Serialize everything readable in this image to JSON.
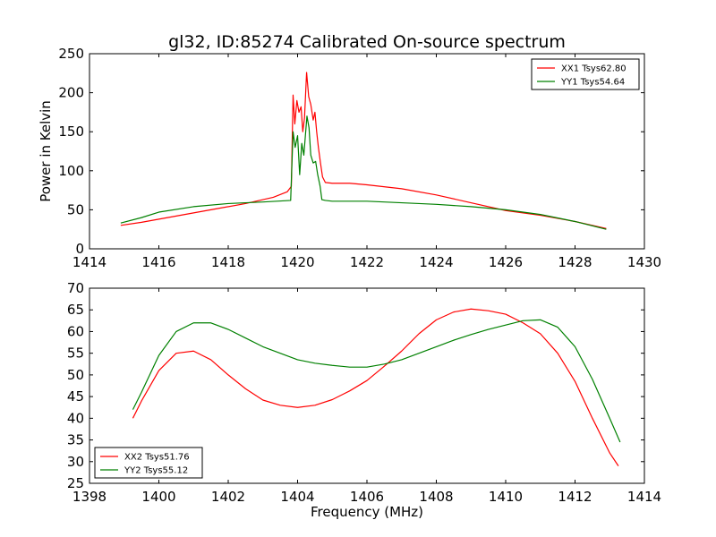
{
  "figure": {
    "title": "gl32, ID:85274 Calibrated On-source spectrum"
  },
  "chart_data": [
    {
      "type": "line",
      "title": "gl32, ID:85274 Calibrated On-source spectrum",
      "xlabel": "",
      "ylabel": "Power in Kelvin",
      "xlim": [
        1414,
        1430
      ],
      "ylim": [
        0,
        250
      ],
      "xticks": [
        1414,
        1416,
        1418,
        1420,
        1422,
        1424,
        1426,
        1428,
        1430
      ],
      "yticks": [
        0,
        50,
        100,
        150,
        200,
        250
      ],
      "grid": false,
      "legend": "top-right",
      "series": [
        {
          "name": "XX1 Tsys62.80",
          "color": "#ff0000",
          "points": [
            [
              1414.9,
              30
            ],
            [
              1415.5,
              34
            ],
            [
              1416.5,
              42
            ],
            [
              1417.5,
              50
            ],
            [
              1418.5,
              58
            ],
            [
              1419.3,
              66
            ],
            [
              1419.7,
              73
            ],
            [
              1419.82,
              80
            ],
            [
              1419.87,
              197
            ],
            [
              1419.92,
              160
            ],
            [
              1419.98,
              190
            ],
            [
              1420.04,
              175
            ],
            [
              1420.1,
              182
            ],
            [
              1420.15,
              150
            ],
            [
              1420.2,
              168
            ],
            [
              1420.26,
              226
            ],
            [
              1420.32,
              195
            ],
            [
              1420.38,
              185
            ],
            [
              1420.45,
              165
            ],
            [
              1420.5,
              175
            ],
            [
              1420.55,
              150
            ],
            [
              1420.6,
              130
            ],
            [
              1420.66,
              110
            ],
            [
              1420.72,
              92
            ],
            [
              1420.8,
              85
            ],
            [
              1421,
              84
            ],
            [
              1421.5,
              84
            ],
            [
              1422,
              82
            ],
            [
              1423,
              77
            ],
            [
              1424,
              69
            ],
            [
              1425,
              59
            ],
            [
              1426,
              49
            ],
            [
              1427,
              43
            ],
            [
              1428,
              35
            ],
            [
              1428.9,
              26
            ]
          ]
        },
        {
          "name": "YY1 Tsys54.64",
          "color": "#008000",
          "points": [
            [
              1414.9,
              33
            ],
            [
              1415.5,
              40
            ],
            [
              1416,
              47
            ],
            [
              1417,
              54
            ],
            [
              1418,
              58
            ],
            [
              1419,
              60
            ],
            [
              1419.8,
              62
            ],
            [
              1419.87,
              150
            ],
            [
              1419.93,
              130
            ],
            [
              1420,
              145
            ],
            [
              1420.06,
              95
            ],
            [
              1420.12,
              135
            ],
            [
              1420.18,
              120
            ],
            [
              1420.27,
              170
            ],
            [
              1420.33,
              155
            ],
            [
              1420.38,
              120
            ],
            [
              1420.45,
              110
            ],
            [
              1420.52,
              112
            ],
            [
              1420.58,
              95
            ],
            [
              1420.65,
              80
            ],
            [
              1420.7,
              63
            ],
            [
              1420.8,
              62
            ],
            [
              1421,
              61
            ],
            [
              1422,
              61
            ],
            [
              1423,
              59
            ],
            [
              1424,
              57
            ],
            [
              1425,
              54
            ],
            [
              1426,
              50
            ],
            [
              1427,
              44
            ],
            [
              1428,
              35
            ],
            [
              1428.9,
              25
            ]
          ]
        }
      ]
    },
    {
      "type": "line",
      "title": "",
      "xlabel": "Frequency (MHz)",
      "ylabel": "",
      "xlim": [
        1398,
        1414
      ],
      "ylim": [
        25,
        70
      ],
      "xticks": [
        1398,
        1400,
        1402,
        1404,
        1406,
        1408,
        1410,
        1412,
        1414
      ],
      "yticks": [
        25,
        30,
        35,
        40,
        45,
        50,
        55,
        60,
        65,
        70
      ],
      "grid": false,
      "legend": "bottom-left",
      "series": [
        {
          "name": "XX2 Tsys51.76",
          "color": "#ff0000",
          "points": [
            [
              1399.25,
              40
            ],
            [
              1399.5,
              44
            ],
            [
              1400,
              51
            ],
            [
              1400.5,
              55
            ],
            [
              1401,
              55.5
            ],
            [
              1401.5,
              53.5
            ],
            [
              1402,
              50
            ],
            [
              1402.5,
              46.8
            ],
            [
              1403,
              44.2
            ],
            [
              1403.5,
              43
            ],
            [
              1404,
              42.5
            ],
            [
              1404.5,
              43
            ],
            [
              1405,
              44.3
            ],
            [
              1405.5,
              46.3
            ],
            [
              1406,
              48.7
            ],
            [
              1406.5,
              52
            ],
            [
              1407,
              55.5
            ],
            [
              1407.5,
              59.5
            ],
            [
              1408,
              62.7
            ],
            [
              1408.5,
              64.5
            ],
            [
              1409,
              65.2
            ],
            [
              1409.5,
              64.8
            ],
            [
              1410,
              64
            ],
            [
              1410.5,
              62
            ],
            [
              1411,
              59.5
            ],
            [
              1411.5,
              55
            ],
            [
              1412,
              48.5
            ],
            [
              1412.5,
              40
            ],
            [
              1413,
              32
            ],
            [
              1413.25,
              29
            ]
          ]
        },
        {
          "name": "YY2 Tsys55.12",
          "color": "#008000",
          "points": [
            [
              1399.25,
              42
            ],
            [
              1399.5,
              46
            ],
            [
              1400,
              54.5
            ],
            [
              1400.5,
              60
            ],
            [
              1401,
              62
            ],
            [
              1401.5,
              62
            ],
            [
              1402,
              60.5
            ],
            [
              1402.5,
              58.5
            ],
            [
              1403,
              56.5
            ],
            [
              1403.5,
              55
            ],
            [
              1404,
              53.5
            ],
            [
              1404.5,
              52.7
            ],
            [
              1405,
              52.2
            ],
            [
              1405.5,
              51.8
            ],
            [
              1406,
              51.8
            ],
            [
              1406.5,
              52.5
            ],
            [
              1407,
              53.5
            ],
            [
              1407.5,
              55
            ],
            [
              1408,
              56.5
            ],
            [
              1408.5,
              58
            ],
            [
              1409,
              59.3
            ],
            [
              1409.5,
              60.5
            ],
            [
              1410,
              61.5
            ],
            [
              1410.5,
              62.5
            ],
            [
              1411,
              62.7
            ],
            [
              1411.5,
              61
            ],
            [
              1412,
              56.5
            ],
            [
              1412.5,
              49
            ],
            [
              1413,
              40
            ],
            [
              1413.3,
              34.5
            ]
          ]
        }
      ]
    }
  ]
}
